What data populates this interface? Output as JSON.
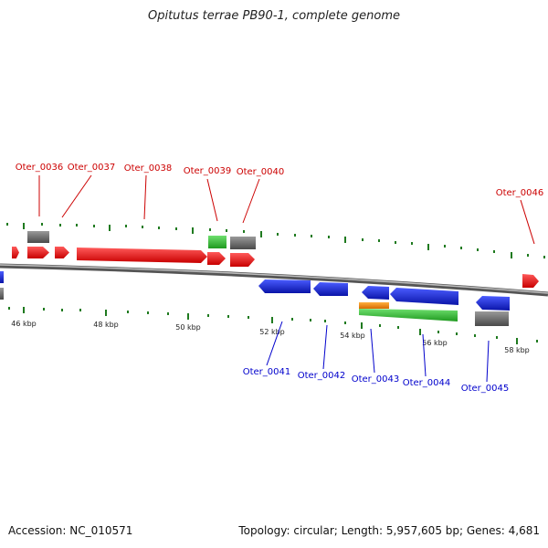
{
  "title": "Opitutus terrae PB90-1, complete genome",
  "footer": {
    "accession": "Accession: NC_010571",
    "summary": "Topology: circular; Length: 5,957,605 bp; Genes: 4,681"
  },
  "colors": {
    "forward_cds": "#e8141b",
    "reverse_cds": "#1226d8",
    "gray_feature": "#6d6d6d",
    "green_feature": "#32b832",
    "orange_feature": "#f28c10",
    "tick": "#1f7a1f",
    "backbone": "#8a8a8a",
    "forward_label": "#cc0000",
    "reverse_label": "#0000cc"
  },
  "kbp_ticks": [
    "46 kbp",
    "48 kbp",
    "50 kbp",
    "52 kbp",
    "54 kbp",
    "56 kbp",
    "58 kbp"
  ],
  "forward_genes": [
    "Oter_0036",
    "Oter_0037",
    "Oter_0038",
    "Oter_0039",
    "Oter_0040",
    "Oter_0046"
  ],
  "reverse_genes": [
    "Oter_0041",
    "Oter_0042",
    "Oter_0043",
    "Oter_0044",
    "Oter_0045"
  ]
}
